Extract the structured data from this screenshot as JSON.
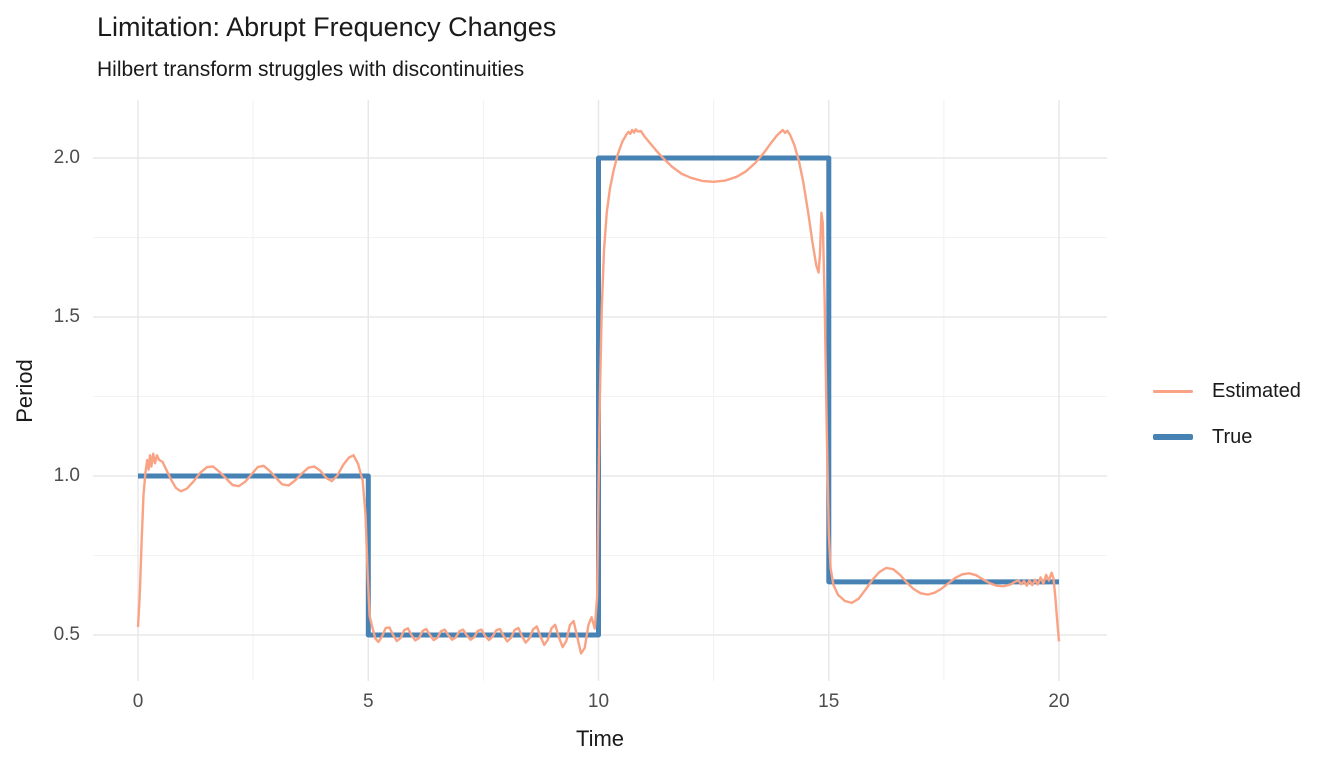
{
  "chart_data": {
    "type": "line",
    "title": "Limitation: Abrupt Frequency Changes",
    "subtitle": "Hilbert transform struggles with discontinuities",
    "xlabel": "Time",
    "ylabel": "Period",
    "xlim": [
      -1,
      21
    ],
    "ylim": [
      0.354,
      2.173
    ],
    "grid": "on",
    "legend_position": "right",
    "x_ticks": [
      "0",
      "5",
      "10",
      "15",
      "20"
    ],
    "x_tick_values": [
      0,
      5,
      10,
      15,
      20
    ],
    "x_minor": [
      2.5,
      7.5,
      12.5,
      17.5
    ],
    "y_ticks": [
      "0.5",
      "1.0",
      "1.5",
      "2.0"
    ],
    "y_tick_values": [
      0.5,
      1.0,
      1.5,
      2.0
    ],
    "y_minor": [
      0.75,
      1.25,
      1.75
    ],
    "colors": {
      "estimated": "#FAA284",
      "true": "#4682B4",
      "grid_major": "#e8e8e8",
      "grid_minor": "#f2f2f2",
      "tick_text": "#4d4d4d",
      "text": "#1a1a1a",
      "background": "#ffffff"
    },
    "legend": [
      {
        "label": "Estimated",
        "color": "#FAA284",
        "style": "thin"
      },
      {
        "label": "True",
        "color": "#4682B4",
        "style": "thick"
      }
    ],
    "series": [
      {
        "name": "Estimated",
        "color": "#FAA284",
        "width": 2.4,
        "points": [
          [
            0,
            0.525
          ],
          [
            0.04,
            0.63
          ],
          [
            0.08,
            0.8
          ],
          [
            0.12,
            0.94
          ],
          [
            0.16,
            1.01
          ],
          [
            0.2,
            1.05
          ],
          [
            0.23,
            1.02
          ],
          [
            0.26,
            1.065
          ],
          [
            0.29,
            1.03
          ],
          [
            0.33,
            1.07
          ],
          [
            0.37,
            1.04
          ],
          [
            0.41,
            1.065
          ],
          [
            0.46,
            1.05
          ],
          [
            0.53,
            1.045
          ],
          [
            0.62,
            1.018
          ],
          [
            0.72,
            0.988
          ],
          [
            0.82,
            0.963
          ],
          [
            0.93,
            0.952
          ],
          [
            1.06,
            0.96
          ],
          [
            1.2,
            0.982
          ],
          [
            1.35,
            1.01
          ],
          [
            1.5,
            1.028
          ],
          [
            1.63,
            1.03
          ],
          [
            1.76,
            1.014
          ],
          [
            1.9,
            0.994
          ],
          [
            2.05,
            0.972
          ],
          [
            2.19,
            0.968
          ],
          [
            2.33,
            0.982
          ],
          [
            2.47,
            1.006
          ],
          [
            2.6,
            1.028
          ],
          [
            2.73,
            1.032
          ],
          [
            2.86,
            1.016
          ],
          [
            3,
            0.994
          ],
          [
            3.13,
            0.974
          ],
          [
            3.27,
            0.97
          ],
          [
            3.41,
            0.986
          ],
          [
            3.56,
            1.008
          ],
          [
            3.7,
            1.026
          ],
          [
            3.83,
            1.03
          ],
          [
            3.96,
            1.016
          ],
          [
            4.09,
            0.994
          ],
          [
            4.21,
            0.984
          ],
          [
            4.33,
            1.002
          ],
          [
            4.46,
            1.036
          ],
          [
            4.58,
            1.058
          ],
          [
            4.68,
            1.065
          ],
          [
            4.78,
            1.038
          ],
          [
            4.88,
            0.985
          ],
          [
            4.94,
            0.88
          ],
          [
            4.99,
            0.68
          ],
          [
            5.03,
            0.56
          ],
          [
            5.08,
            0.53
          ],
          [
            5.15,
            0.49
          ],
          [
            5.22,
            0.478
          ],
          [
            5.3,
            0.496
          ],
          [
            5.38,
            0.522
          ],
          [
            5.46,
            0.524
          ],
          [
            5.54,
            0.5
          ],
          [
            5.62,
            0.481
          ],
          [
            5.7,
            0.49
          ],
          [
            5.78,
            0.515
          ],
          [
            5.86,
            0.521
          ],
          [
            5.94,
            0.5
          ],
          [
            6.02,
            0.483
          ],
          [
            6.1,
            0.49
          ],
          [
            6.18,
            0.513
          ],
          [
            6.26,
            0.519
          ],
          [
            6.34,
            0.5
          ],
          [
            6.42,
            0.484
          ],
          [
            6.5,
            0.491
          ],
          [
            6.58,
            0.512
          ],
          [
            6.66,
            0.517
          ],
          [
            6.74,
            0.499
          ],
          [
            6.82,
            0.485
          ],
          [
            6.9,
            0.492
          ],
          [
            6.98,
            0.512
          ],
          [
            7.06,
            0.517
          ],
          [
            7.14,
            0.499
          ],
          [
            7.22,
            0.485
          ],
          [
            7.3,
            0.493
          ],
          [
            7.38,
            0.513
          ],
          [
            7.46,
            0.517
          ],
          [
            7.54,
            0.497
          ],
          [
            7.62,
            0.484
          ],
          [
            7.7,
            0.495
          ],
          [
            7.78,
            0.515
          ],
          [
            7.86,
            0.519
          ],
          [
            7.94,
            0.497
          ],
          [
            8.02,
            0.48
          ],
          [
            8.1,
            0.491
          ],
          [
            8.18,
            0.516
          ],
          [
            8.26,
            0.522
          ],
          [
            8.34,
            0.496
          ],
          [
            8.42,
            0.476
          ],
          [
            8.5,
            0.489
          ],
          [
            8.58,
            0.518
          ],
          [
            8.66,
            0.527
          ],
          [
            8.74,
            0.495
          ],
          [
            8.82,
            0.469
          ],
          [
            8.9,
            0.485
          ],
          [
            8.98,
            0.521
          ],
          [
            9.06,
            0.532
          ],
          [
            9.14,
            0.493
          ],
          [
            9.22,
            0.462
          ],
          [
            9.3,
            0.481
          ],
          [
            9.38,
            0.531
          ],
          [
            9.46,
            0.544
          ],
          [
            9.54,
            0.493
          ],
          [
            9.62,
            0.442
          ],
          [
            9.7,
            0.459
          ],
          [
            9.78,
            0.531
          ],
          [
            9.85,
            0.556
          ],
          [
            9.92,
            0.52
          ],
          [
            9.97,
            0.62
          ],
          [
            10,
            0.95
          ],
          [
            10.03,
            1.25
          ],
          [
            10.07,
            1.52
          ],
          [
            10.12,
            1.71
          ],
          [
            10.18,
            1.83
          ],
          [
            10.25,
            1.905
          ],
          [
            10.33,
            1.962
          ],
          [
            10.42,
            2.012
          ],
          [
            10.52,
            2.052
          ],
          [
            10.6,
            2.072
          ],
          [
            10.65,
            2.082
          ],
          [
            10.69,
            2.076
          ],
          [
            10.73,
            2.088
          ],
          [
            10.77,
            2.08
          ],
          [
            10.81,
            2.09
          ],
          [
            10.86,
            2.083
          ],
          [
            10.92,
            2.085
          ],
          [
            11,
            2.068
          ],
          [
            11.1,
            2.05
          ],
          [
            11.25,
            2.024
          ],
          [
            11.4,
            2
          ],
          [
            11.6,
            1.972
          ],
          [
            11.8,
            1.951
          ],
          [
            12,
            1.938
          ],
          [
            12.25,
            1.928
          ],
          [
            12.5,
            1.925
          ],
          [
            12.75,
            1.929
          ],
          [
            13,
            1.941
          ],
          [
            13.2,
            1.958
          ],
          [
            13.4,
            1.984
          ],
          [
            13.6,
            2.018
          ],
          [
            13.75,
            2.048
          ],
          [
            13.87,
            2.07
          ],
          [
            13.94,
            2.08
          ],
          [
            14,
            2.088
          ],
          [
            14.05,
            2.079
          ],
          [
            14.1,
            2.086
          ],
          [
            14.16,
            2.073
          ],
          [
            14.25,
            2.042
          ],
          [
            14.35,
            1.992
          ],
          [
            14.45,
            1.922
          ],
          [
            14.55,
            1.832
          ],
          [
            14.65,
            1.732
          ],
          [
            14.73,
            1.662
          ],
          [
            14.78,
            1.64
          ],
          [
            14.81,
            1.7
          ],
          [
            14.84,
            1.828
          ],
          [
            14.87,
            1.795
          ],
          [
            14.91,
            1.56
          ],
          [
            14.96,
            1.12
          ],
          [
            15,
            0.82
          ],
          [
            15.04,
            0.71
          ],
          [
            15.1,
            0.658
          ],
          [
            15.2,
            0.626
          ],
          [
            15.35,
            0.607
          ],
          [
            15.5,
            0.601
          ],
          [
            15.65,
            0.614
          ],
          [
            15.8,
            0.643
          ],
          [
            15.95,
            0.674
          ],
          [
            16.1,
            0.698
          ],
          [
            16.25,
            0.711
          ],
          [
            16.4,
            0.707
          ],
          [
            16.55,
            0.689
          ],
          [
            16.7,
            0.664
          ],
          [
            16.85,
            0.644
          ],
          [
            17,
            0.631
          ],
          [
            17.15,
            0.627
          ],
          [
            17.3,
            0.633
          ],
          [
            17.45,
            0.646
          ],
          [
            17.6,
            0.663
          ],
          [
            17.75,
            0.68
          ],
          [
            17.9,
            0.691
          ],
          [
            18.05,
            0.694
          ],
          [
            18.2,
            0.688
          ],
          [
            18.35,
            0.675
          ],
          [
            18.5,
            0.663
          ],
          [
            18.65,
            0.655
          ],
          [
            18.8,
            0.653
          ],
          [
            18.95,
            0.659
          ],
          [
            19.05,
            0.668
          ],
          [
            19.12,
            0.671
          ],
          [
            19.18,
            0.659
          ],
          [
            19.24,
            0.67
          ],
          [
            19.3,
            0.655
          ],
          [
            19.36,
            0.672
          ],
          [
            19.42,
            0.657
          ],
          [
            19.48,
            0.674
          ],
          [
            19.54,
            0.659
          ],
          [
            19.6,
            0.681
          ],
          [
            19.66,
            0.661
          ],
          [
            19.72,
            0.689
          ],
          [
            19.78,
            0.671
          ],
          [
            19.84,
            0.696
          ],
          [
            19.88,
            0.678
          ],
          [
            19.92,
            0.62
          ],
          [
            19.96,
            0.545
          ],
          [
            20,
            0.48
          ]
        ]
      },
      {
        "name": "True",
        "color": "#4682B4",
        "width": 5,
        "points": [
          [
            0,
            1
          ],
          [
            5,
            1
          ],
          [
            5,
            0.5
          ],
          [
            10,
            0.5
          ],
          [
            10,
            2
          ],
          [
            15,
            2
          ],
          [
            15,
            0.667
          ],
          [
            20,
            0.667
          ]
        ]
      }
    ]
  }
}
